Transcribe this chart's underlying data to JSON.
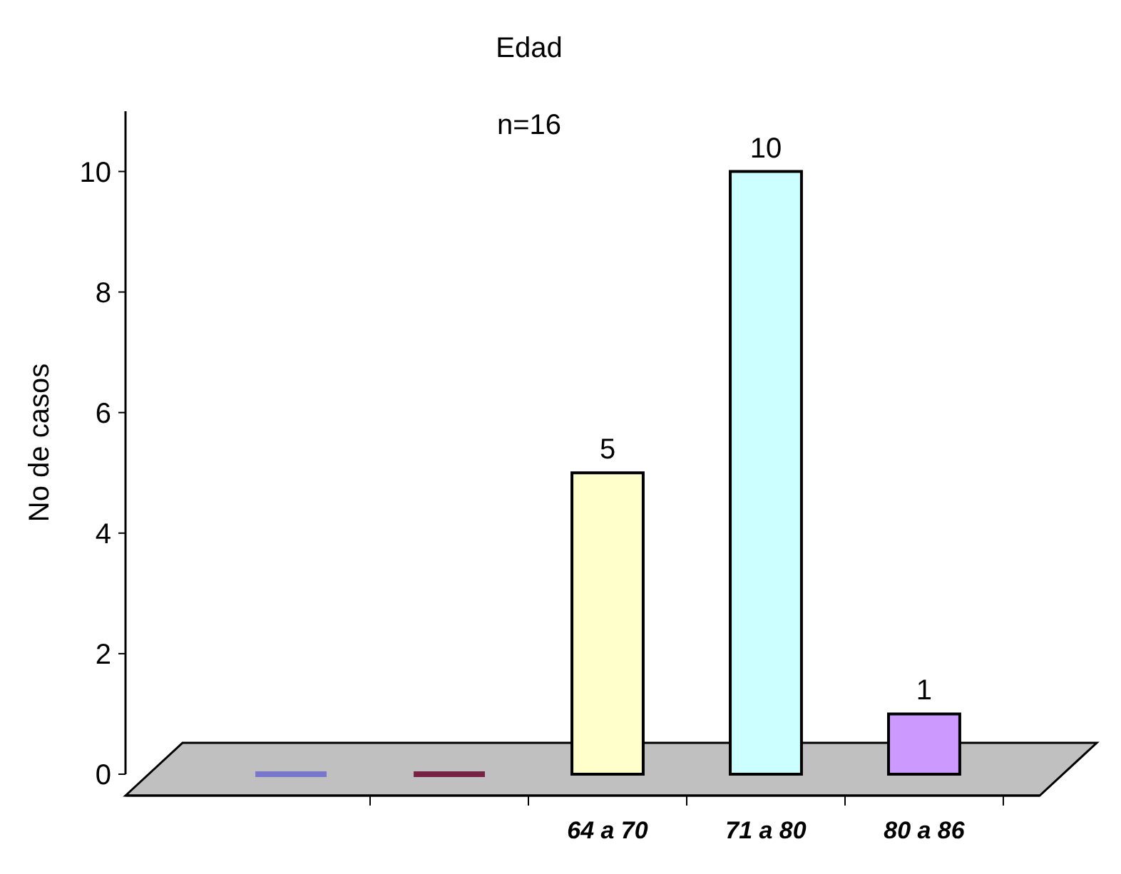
{
  "chart_data": {
    "type": "bar",
    "title": "Edad",
    "subtitle": "n=16",
    "ylabel": "No de casos",
    "categories": [
      null,
      null,
      "64 a 70",
      "71 a 80",
      "80 a 86"
    ],
    "values": [
      0,
      0,
      5,
      10,
      1
    ],
    "colors": [
      "#7777cc",
      "#772244",
      "#ffffcc",
      "#ccffff",
      "#cc99ff"
    ],
    "value_labels": [
      null,
      null,
      "5",
      "10",
      "1"
    ],
    "ylim": [
      0,
      11
    ],
    "yticks": [
      0,
      2,
      4,
      6,
      8,
      10
    ],
    "grid": false
  }
}
